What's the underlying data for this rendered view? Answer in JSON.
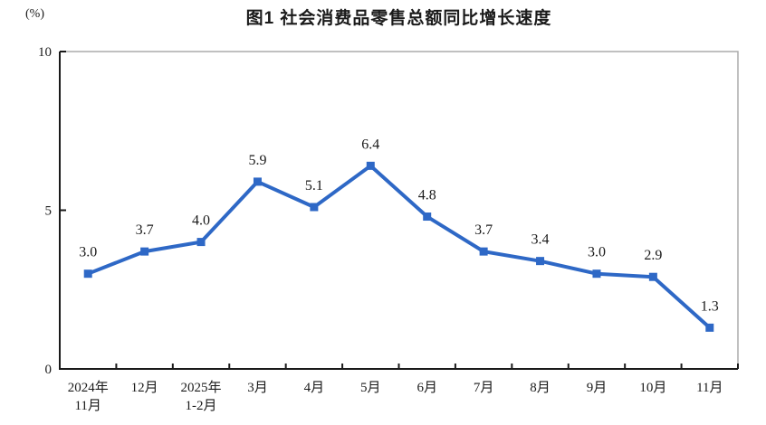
{
  "chart_data": {
    "type": "line",
    "title": "图1 社会消费品零售总额同比增长速度",
    "unit_label": "(%)",
    "categories": [
      [
        "2024年",
        "11月"
      ],
      [
        "12月"
      ],
      [
        "2025年",
        "1-2月"
      ],
      [
        "3月"
      ],
      [
        "4月"
      ],
      [
        "5月"
      ],
      [
        "6月"
      ],
      [
        "7月"
      ],
      [
        "8月"
      ],
      [
        "9月"
      ],
      [
        "10月"
      ],
      [
        "11月"
      ]
    ],
    "values": [
      3.0,
      3.7,
      4.0,
      5.9,
      5.1,
      6.4,
      4.8,
      3.7,
      3.4,
      3.0,
      2.9,
      1.3
    ],
    "data_labels": [
      "3.0",
      "3.7",
      "4.0",
      "5.9",
      "5.1",
      "6.4",
      "4.8",
      "3.7",
      "3.4",
      "3.0",
      "2.9",
      "1.3"
    ],
    "yticks": [
      "0",
      "5",
      "10"
    ],
    "ylim": [
      0,
      10
    ],
    "grid": false,
    "legend": "none",
    "line_color": "#2E68C6",
    "marker": "square",
    "axis_color": "#1a1a1a",
    "frame_color": "#ababab"
  }
}
